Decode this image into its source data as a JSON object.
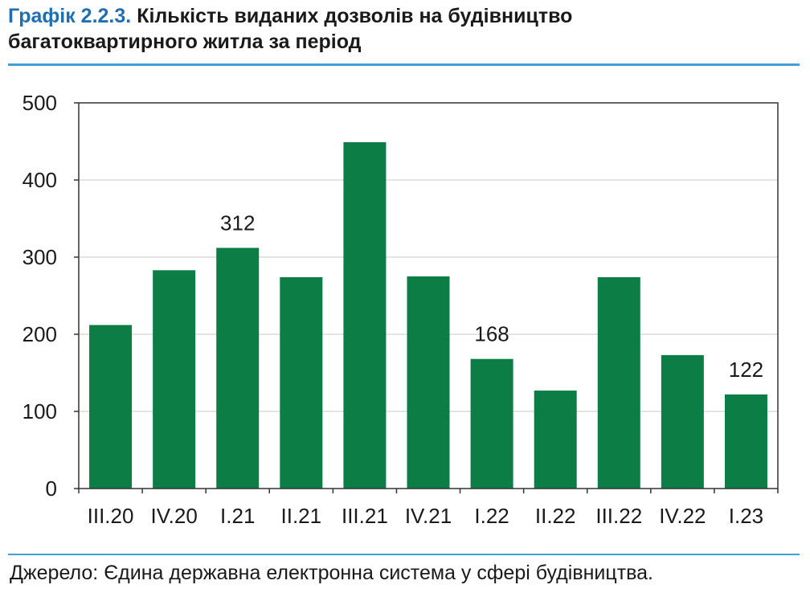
{
  "header": {
    "prefix": "Графік 2.2.3.",
    "title_line1": "Кількість виданих дозволів на будівництво",
    "title_line2": "багатоквартирного житла за період"
  },
  "source": "Джерело: Єдина державна електронна система у сфері будівництва.",
  "colors": {
    "bar": "#0b7d45",
    "accent": "#3fa0d8",
    "title_prefix": "#1f6fb2"
  },
  "chart_data": {
    "type": "bar",
    "title": "Кількість виданих дозволів на будівництво багатоквартирного житла за період",
    "categories": [
      "III.20",
      "IV.20",
      "I.21",
      "II.21",
      "III.21",
      "IV.21",
      "I.22",
      "II.22",
      "III.22",
      "IV.22",
      "I.23"
    ],
    "values": [
      212,
      283,
      312,
      274,
      449,
      275,
      168,
      127,
      274,
      173,
      122
    ],
    "data_labels": [
      {
        "index": 2,
        "text": "312"
      },
      {
        "index": 6,
        "text": "168"
      },
      {
        "index": 10,
        "text": "122"
      }
    ],
    "ylim": [
      0,
      500
    ],
    "yticks": [
      0,
      100,
      200,
      300,
      400,
      500
    ],
    "grid": true,
    "xlabel": "",
    "ylabel": ""
  }
}
